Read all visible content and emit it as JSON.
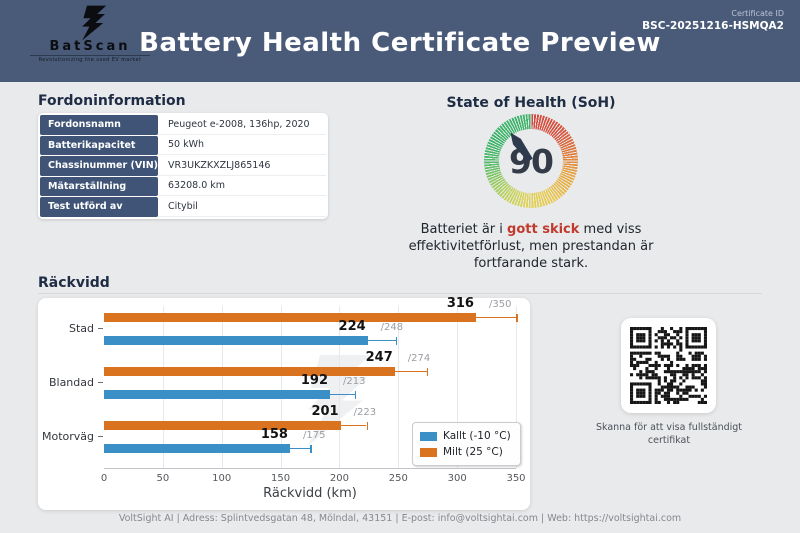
{
  "header": {
    "brand": "BatScan",
    "tagline": "Revolutionizing the used EV market",
    "title": "Battery Health Certificate Preview",
    "certificate_id_label": "Certificate ID",
    "certificate_id": "BSC-20251216-HSMQA2"
  },
  "vehicle_info": {
    "heading": "Fordoninformation",
    "rows": [
      {
        "label": "Fordonsnamn",
        "value": "Peugeot e-2008, 136hp, 2020"
      },
      {
        "label": "Batterikapacitet",
        "value": "50 kWh"
      },
      {
        "label": "Chassinummer (VIN)",
        "value": "VR3UKZKXZLJ865146"
      },
      {
        "label": "Mätarställning",
        "value": "63208.0 km"
      },
      {
        "label": "Test utförd av",
        "value": "Citybil"
      }
    ]
  },
  "soh": {
    "heading": "State of Health (SoH)",
    "value": "90",
    "description_prefix": "Batteriet är i ",
    "description_highlight": "gott skick",
    "description_suffix": " med viss effektivitetförlust, men prestandan är fortfarande stark.",
    "highlight_color": "#c13a2e"
  },
  "range_section": {
    "heading": "Räckvidd"
  },
  "chart_data": {
    "type": "bar",
    "orientation": "horizontal",
    "title": "Räckvidd",
    "categories": [
      "Stad",
      "Blandad",
      "Motorväg"
    ],
    "series": [
      {
        "name": "Milt (25 °C)",
        "color": "#d9731f",
        "values": [
          316,
          247,
          201
        ],
        "whisker_max": [
          350,
          274,
          223
        ]
      },
      {
        "name": "Kallt (-10 °C)",
        "color": "#3a8fc7",
        "values": [
          224,
          192,
          158
        ],
        "whisker_max": [
          248,
          213,
          175
        ]
      }
    ],
    "xlabel": "Räckvidd (km)",
    "xlim": [
      0,
      350
    ],
    "xticks": [
      0,
      50,
      100,
      150,
      200,
      250,
      300,
      350
    ],
    "grid": true,
    "legend_position": "lower right",
    "legend": [
      {
        "label": "Kallt (-10 °C)",
        "color": "#3a8fc7"
      },
      {
        "label": "Milt (25 °C)",
        "color": "#d9731f"
      }
    ]
  },
  "qr": {
    "caption": "Skanna för att visa fullständigt certifikat"
  },
  "footer": {
    "text": "VoltSight AI | Adress: Splintvedsgatan 48, Mölndal, 43151 | E-post: info@voltsightai.com | Web: https://voltsightai.com"
  },
  "colors": {
    "header_bg": "#4a5b7a",
    "page_bg": "#e9eaec",
    "table_label_bg": "#3f5476",
    "bar_blue": "#3a8fc7",
    "bar_orange": "#d9731f",
    "highlight_red": "#c13a2e",
    "gauge_needle": "#2e3a4e"
  }
}
